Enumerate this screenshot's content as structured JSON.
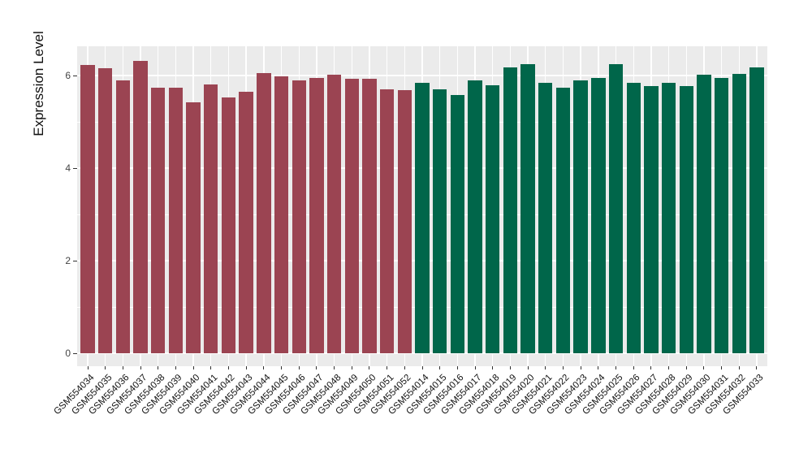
{
  "figure": {
    "background": "#FFFFFF",
    "panel_background": "#EBEBEB",
    "gridline_color": "#FFFFFF",
    "axis_tick_text_color": "#444444",
    "axis_label_text_color": "#111111"
  },
  "chart_data": {
    "type": "bar",
    "title": "",
    "xlabel": "",
    "ylabel": "Expression Level",
    "ylim": [
      0,
      6.6
    ],
    "y_major_ticks": [
      0,
      2,
      4,
      6
    ],
    "y_minor_ticks": [
      1,
      3,
      5
    ],
    "grid": "white major and minor horizontal lines plus vertical line per category on grey panel",
    "legend_position": "none",
    "x_tick_label_rotation_deg": 45,
    "categories": [
      "GSM554034",
      "GSM554035",
      "GSM554036",
      "GSM554037",
      "GSM554038",
      "GSM554039",
      "GSM554040",
      "GSM554041",
      "GSM554042",
      "GSM554043",
      "GSM554044",
      "GSM554045",
      "GSM554046",
      "GSM554047",
      "GSM554048",
      "GSM554049",
      "GSM554050",
      "GSM554051",
      "GSM554052",
      "GSM554014",
      "GSM554015",
      "GSM554016",
      "GSM554017",
      "GSM554018",
      "GSM554019",
      "GSM554020",
      "GSM554021",
      "GSM554022",
      "GSM554023",
      "GSM554024",
      "GSM554025",
      "GSM554026",
      "GSM554027",
      "GSM554028",
      "GSM554029",
      "GSM554030",
      "GSM554031",
      "GSM554032",
      "GSM554033"
    ],
    "values": [
      6.22,
      6.16,
      5.89,
      6.32,
      5.74,
      5.74,
      5.42,
      5.81,
      5.53,
      5.65,
      6.06,
      5.99,
      5.89,
      5.95,
      6.02,
      5.93,
      5.93,
      5.71,
      5.69,
      5.84,
      5.7,
      5.58,
      5.9,
      5.79,
      6.18,
      6.24,
      5.85,
      5.74,
      5.89,
      5.95,
      6.25,
      5.85,
      5.78,
      5.85,
      5.78,
      6.01,
      5.94,
      6.03,
      6.17
    ],
    "bar_group_index": [
      0,
      0,
      0,
      0,
      0,
      0,
      0,
      0,
      0,
      0,
      0,
      0,
      0,
      0,
      0,
      0,
      0,
      0,
      0,
      1,
      1,
      1,
      1,
      1,
      1,
      1,
      1,
      1,
      1,
      1,
      1,
      1,
      1,
      1,
      1,
      1,
      1,
      1,
      1
    ],
    "group_colors": [
      "#9B4452",
      "#00664A"
    ]
  }
}
